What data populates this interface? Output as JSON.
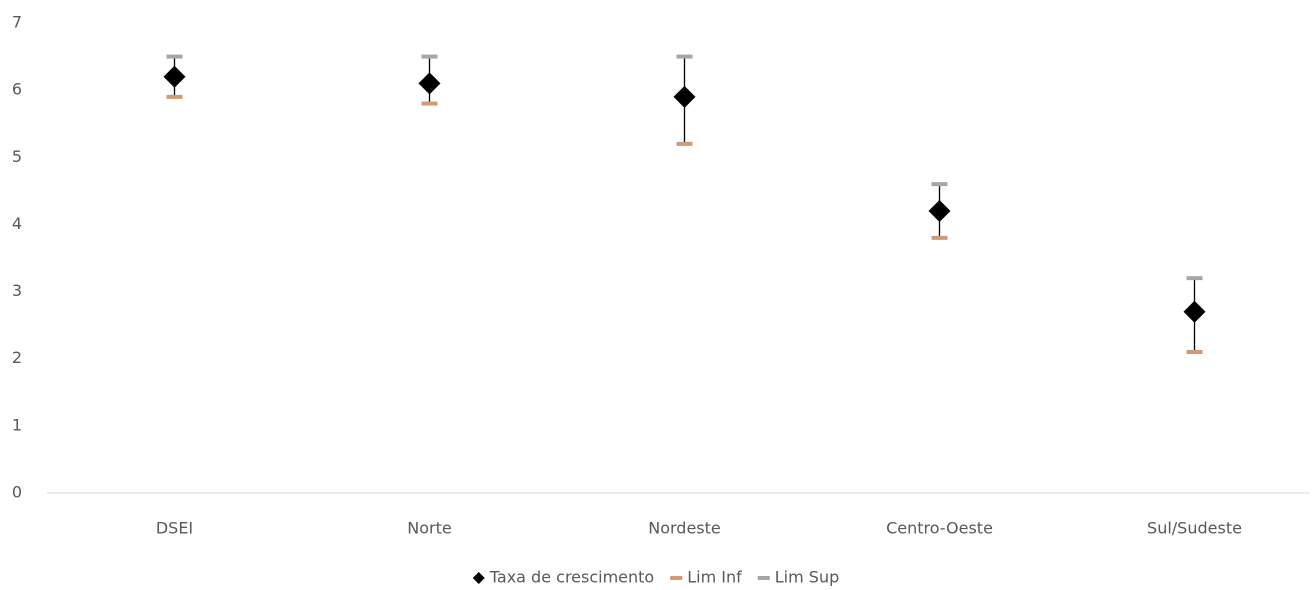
{
  "chart_data": {
    "type": "line",
    "categories": [
      "DSEI",
      "Norte",
      "Nordeste",
      "Centro-Oeste",
      "Sul/Sudeste"
    ],
    "series": [
      {
        "name": "Taxa de crescimento",
        "color": "#000000",
        "marker": "diamond",
        "values": [
          6.2,
          6.1,
          5.9,
          4.2,
          2.7
        ]
      },
      {
        "name": "Lim Inf",
        "color": "#d09a78",
        "marker": "dash",
        "values": [
          5.9,
          5.8,
          5.2,
          3.8,
          2.1
        ]
      },
      {
        "name": "Lim Sup",
        "color": "#a5a5a5",
        "marker": "dash",
        "values": [
          6.5,
          6.5,
          6.5,
          4.6,
          3.2
        ]
      }
    ],
    "high_low_lines": true,
    "ylim": [
      0,
      7
    ],
    "yticks": [
      0,
      1,
      2,
      3,
      4,
      5,
      6,
      7
    ],
    "grid": false,
    "legend": "bottom"
  }
}
